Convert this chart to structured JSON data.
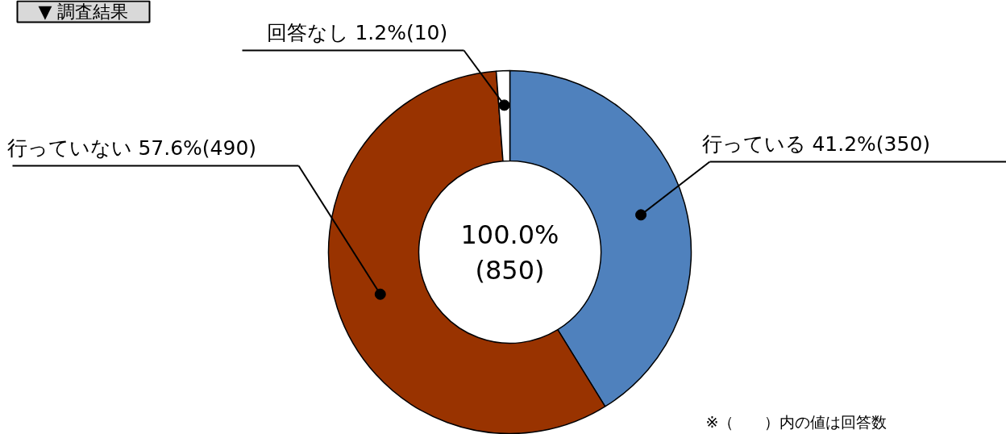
{
  "chart_data": {
    "type": "donut",
    "title": "▼ 調査結果",
    "categories": [
      "行っている",
      "行っていない",
      "回答なし"
    ],
    "values": [
      41.2,
      57.6,
      1.2
    ],
    "colors": [
      "#4f81bd",
      "#993300",
      "#ffffff"
    ],
    "value_labels": [
      "41.2%(350)",
      "57.6%(490)",
      "1.2%(10)"
    ],
    "annotations": [
      "100.0%",
      "(850)",
      "※（　　）内の値は回答数"
    ]
  }
}
